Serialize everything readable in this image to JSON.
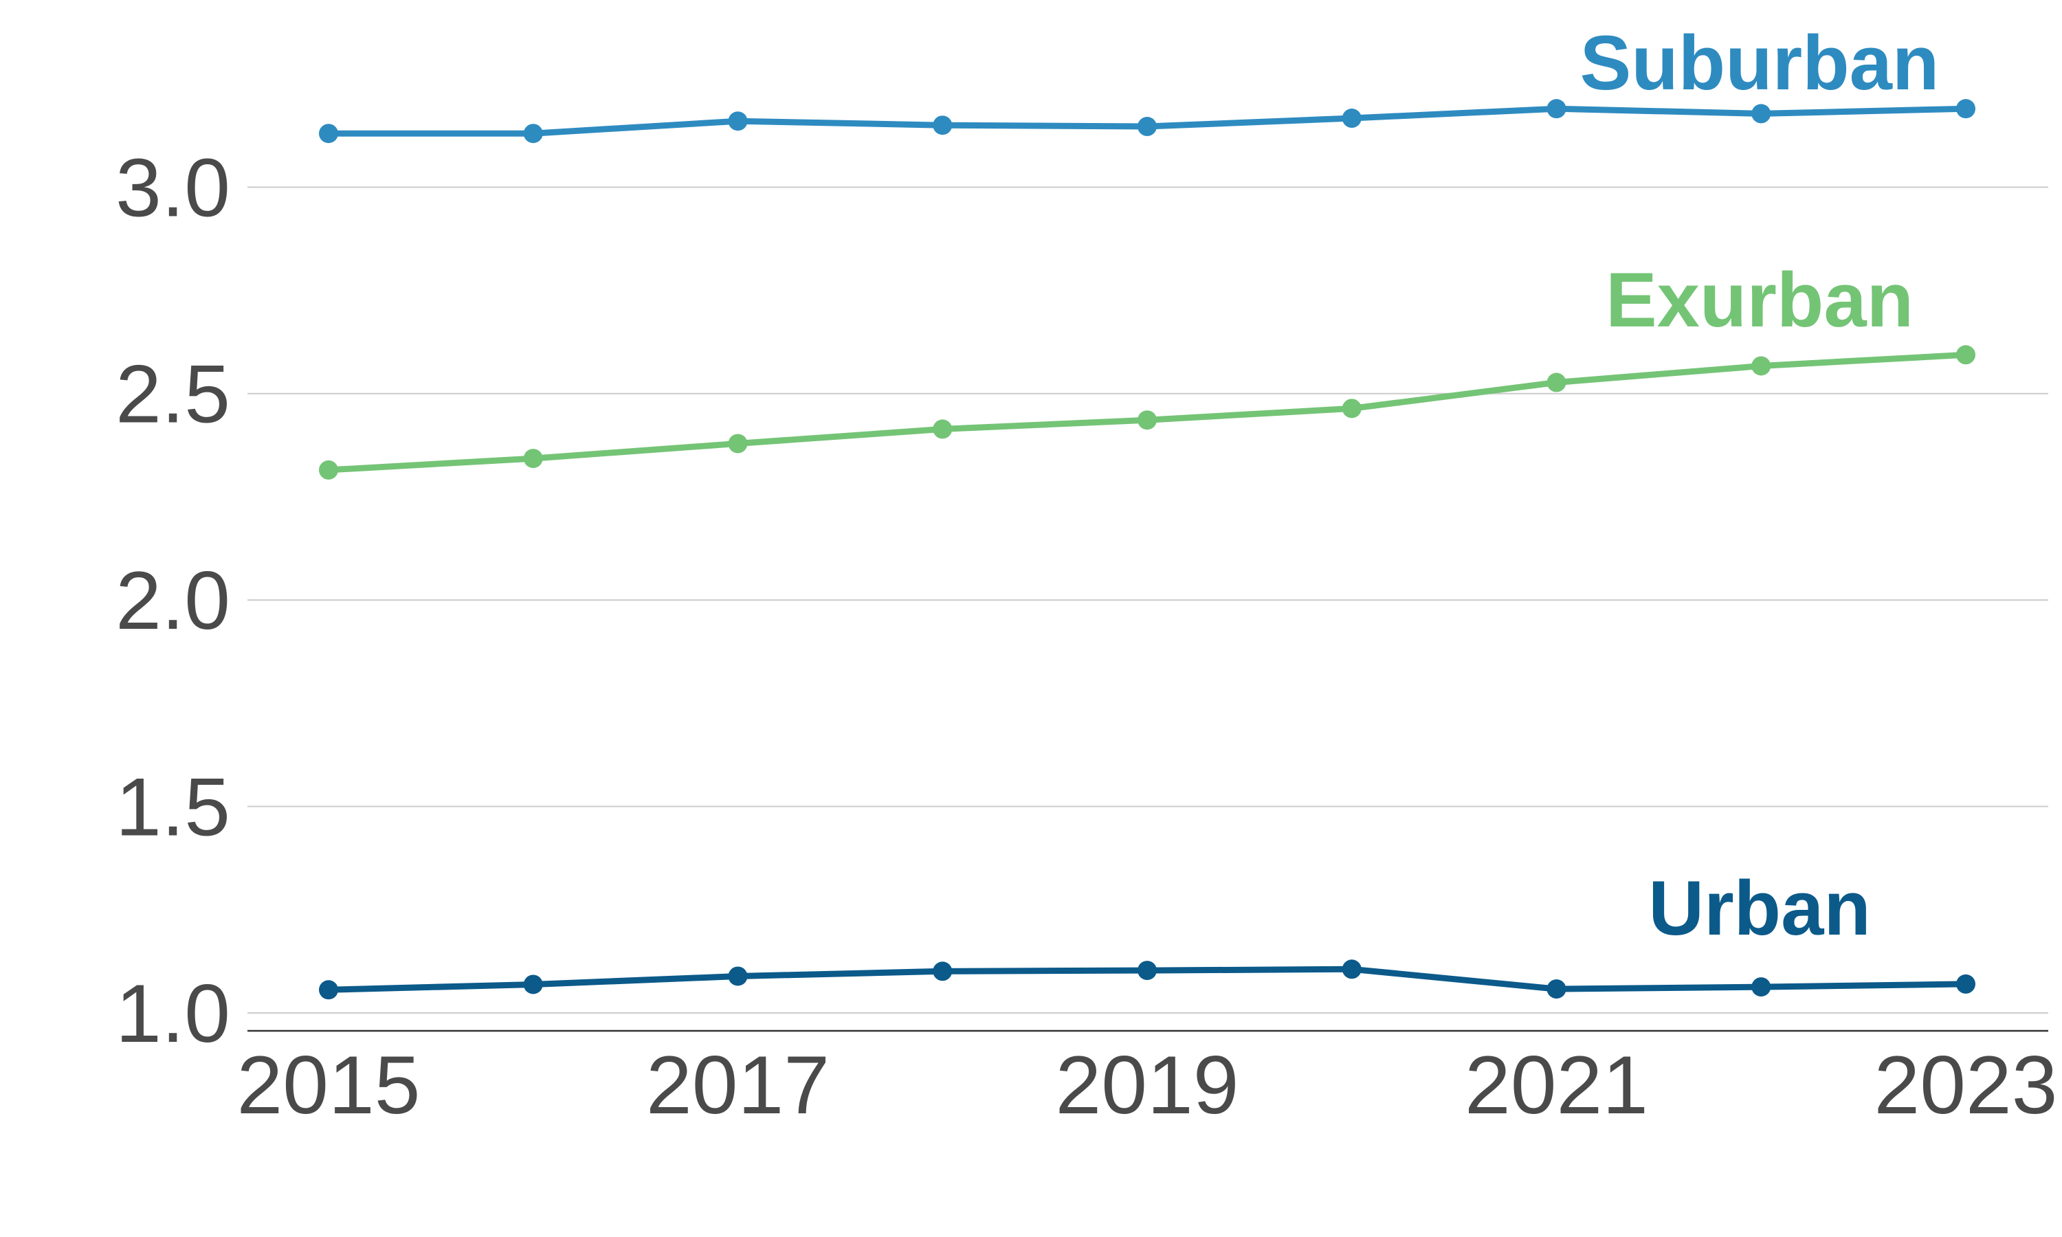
{
  "chart_data": {
    "type": "line",
    "title": "",
    "xlabel": "",
    "ylabel": "",
    "x": [
      2015,
      2016,
      2017,
      2018,
      2019,
      2020,
      2021,
      2022,
      2023
    ],
    "x_tick_labels": [
      "2015",
      "2017",
      "2019",
      "2021",
      "2023"
    ],
    "y_tick_labels": [
      "1.0",
      "1.5",
      "2.0",
      "2.5",
      "3.0"
    ],
    "ylim": [
      0.94,
      3.42
    ],
    "grid": true,
    "legend": "direct labels at right end of each line",
    "series": [
      {
        "name": "Suburban",
        "color": "#2e8bc0",
        "values": [
          3.13,
          3.13,
          3.16,
          3.15,
          3.147,
          3.167,
          3.19,
          3.178,
          3.19
        ]
      },
      {
        "name": "Exurban",
        "color": "#74c476",
        "values": [
          2.315,
          2.343,
          2.379,
          2.414,
          2.436,
          2.464,
          2.527,
          2.567,
          2.594
        ]
      },
      {
        "name": "Urban",
        "color": "#0b5a8a",
        "values": [
          1.056,
          1.069,
          1.089,
          1.101,
          1.103,
          1.106,
          1.058,
          1.063,
          1.07
        ]
      }
    ]
  }
}
